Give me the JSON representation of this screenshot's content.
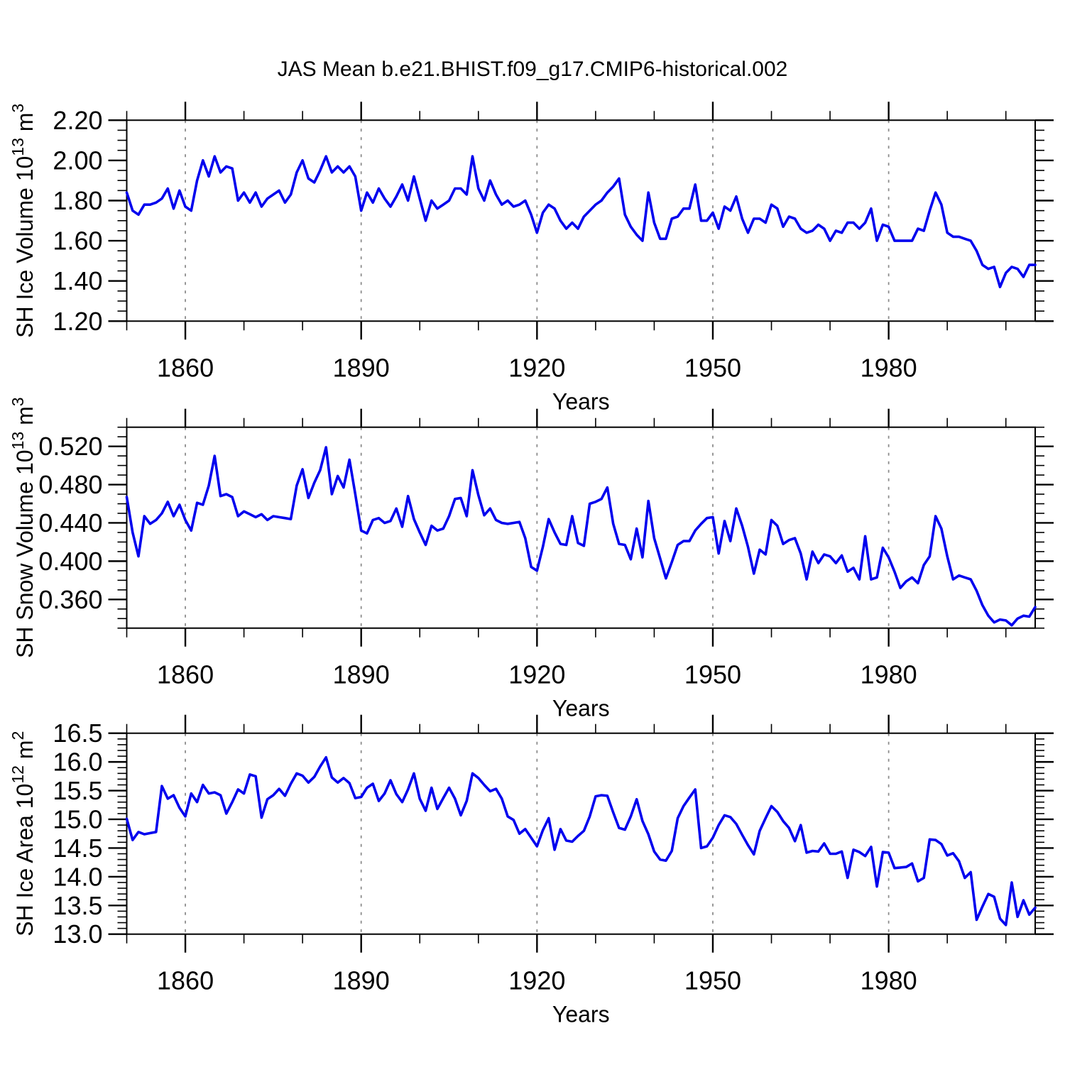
{
  "page_title": "JAS Mean b.e21.BHIST.f09_g17.CMIP6-historical.002",
  "colors": {
    "line": "#0000EE",
    "grid": "#8C8C8C",
    "axis": "#000000",
    "text": "#000000",
    "background": "#FFFFFF"
  },
  "x_axis": {
    "label": "Years",
    "start_year": 1850,
    "end_year": 2005,
    "major_ticks": [
      1860,
      1890,
      1920,
      1950,
      1980
    ],
    "minor_tick_step": 10,
    "gridlines": "dashed vertical at major ticks"
  },
  "chart_data": [
    {
      "type": "line",
      "name": "sh-ice-volume",
      "ylabel_text": "SH Ice Volume 10^13 m^3",
      "ylabel_parts": [
        {
          "t": "SH Ice Volume 10"
        },
        {
          "sup": "13"
        },
        {
          "t": " m"
        },
        {
          "sup": "3"
        }
      ],
      "ylim": [
        1.2,
        2.2
      ],
      "ytick_major": [
        1.2,
        1.4,
        1.6,
        1.8,
        2.0,
        2.2
      ],
      "ytick_minor_step": 0.05,
      "ytick_decimals": 2,
      "x_start": 1850,
      "x_step": 1,
      "values": [
        1.84,
        1.75,
        1.73,
        1.78,
        1.78,
        1.79,
        1.81,
        1.86,
        1.76,
        1.85,
        1.77,
        1.75,
        1.9,
        2.0,
        1.92,
        2.02,
        1.94,
        1.97,
        1.96,
        1.8,
        1.84,
        1.79,
        1.84,
        1.77,
        1.81,
        1.83,
        1.85,
        1.79,
        1.83,
        1.94,
        2.0,
        1.91,
        1.89,
        1.95,
        2.02,
        1.94,
        1.97,
        1.94,
        1.97,
        1.92,
        1.75,
        1.84,
        1.79,
        1.86,
        1.81,
        1.77,
        1.82,
        1.88,
        1.8,
        1.92,
        1.81,
        1.7,
        1.8,
        1.76,
        1.78,
        1.8,
        1.86,
        1.86,
        1.83,
        2.02,
        1.86,
        1.8,
        1.9,
        1.83,
        1.78,
        1.8,
        1.77,
        1.78,
        1.8,
        1.73,
        1.64,
        1.74,
        1.78,
        1.76,
        1.7,
        1.66,
        1.69,
        1.66,
        1.72,
        1.75,
        1.78,
        1.8,
        1.84,
        1.87,
        1.91,
        1.73,
        1.67,
        1.63,
        1.6,
        1.84,
        1.69,
        1.61,
        1.61,
        1.71,
        1.72,
        1.76,
        1.76,
        1.88,
        1.7,
        1.7,
        1.74,
        1.66,
        1.77,
        1.75,
        1.82,
        1.71,
        1.64,
        1.71,
        1.71,
        1.69,
        1.78,
        1.76,
        1.67,
        1.72,
        1.71,
        1.66,
        1.64,
        1.65,
        1.68,
        1.66,
        1.6,
        1.65,
        1.64,
        1.69,
        1.69,
        1.66,
        1.69,
        1.76,
        1.6,
        1.68,
        1.67,
        1.6,
        1.6,
        1.6,
        1.6,
        1.66,
        1.65,
        1.75,
        1.84,
        1.78,
        1.64,
        1.62,
        1.62,
        1.61,
        1.6,
        1.55,
        1.48,
        1.46,
        1.47,
        1.37,
        1.44,
        1.47,
        1.46,
        1.42,
        1.48,
        1.48
      ]
    },
    {
      "type": "line",
      "name": "sh-snow-volume",
      "ylabel_text": "SH Snow Volume 10^13 m^3",
      "ylabel_parts": [
        {
          "t": "SH Snow Volume 10"
        },
        {
          "sup": "13"
        },
        {
          "t": " m"
        },
        {
          "sup": "3"
        }
      ],
      "ylim": [
        0.33,
        0.54
      ],
      "ytick_major": [
        0.36,
        0.4,
        0.44,
        0.48,
        0.52
      ],
      "ytick_minor_step": 0.01,
      "ytick_decimals": 3,
      "x_start": 1850,
      "x_step": 1,
      "values": [
        0.467,
        0.43,
        0.405,
        0.447,
        0.439,
        0.443,
        0.45,
        0.462,
        0.447,
        0.459,
        0.443,
        0.432,
        0.461,
        0.459,
        0.479,
        0.51,
        0.468,
        0.47,
        0.467,
        0.447,
        0.452,
        0.449,
        0.446,
        0.449,
        0.443,
        0.447,
        0.446,
        0.445,
        0.444,
        0.479,
        0.496,
        0.466,
        0.482,
        0.495,
        0.519,
        0.47,
        0.489,
        0.477,
        0.506,
        0.47,
        0.432,
        0.429,
        0.443,
        0.445,
        0.44,
        0.442,
        0.455,
        0.436,
        0.468,
        0.444,
        0.43,
        0.417,
        0.437,
        0.432,
        0.434,
        0.447,
        0.465,
        0.466,
        0.447,
        0.495,
        0.469,
        0.448,
        0.455,
        0.443,
        0.44,
        0.439,
        0.44,
        0.441,
        0.424,
        0.394,
        0.39,
        0.415,
        0.444,
        0.43,
        0.418,
        0.417,
        0.447,
        0.419,
        0.416,
        0.46,
        0.462,
        0.465,
        0.477,
        0.439,
        0.418,
        0.417,
        0.402,
        0.434,
        0.404,
        0.463,
        0.424,
        0.403,
        0.382,
        0.399,
        0.417,
        0.421,
        0.421,
        0.432,
        0.439,
        0.445,
        0.446,
        0.408,
        0.442,
        0.421,
        0.455,
        0.437,
        0.415,
        0.387,
        0.412,
        0.407,
        0.443,
        0.437,
        0.418,
        0.422,
        0.424,
        0.408,
        0.381,
        0.41,
        0.398,
        0.407,
        0.405,
        0.398,
        0.406,
        0.389,
        0.393,
        0.381,
        0.426,
        0.381,
        0.383,
        0.414,
        0.404,
        0.389,
        0.372,
        0.379,
        0.383,
        0.377,
        0.396,
        0.405,
        0.447,
        0.434,
        0.405,
        0.381,
        0.385,
        0.383,
        0.381,
        0.369,
        0.354,
        0.343,
        0.336,
        0.339,
        0.338,
        0.333,
        0.34,
        0.343,
        0.342,
        0.352
      ]
    },
    {
      "type": "line",
      "name": "sh-ice-area",
      "ylabel_text": "SH Ice Area 10^12 m^2",
      "ylabel_parts": [
        {
          "t": "SH Ice Area 10"
        },
        {
          "sup": "12"
        },
        {
          "t": " m"
        },
        {
          "sup": "2"
        }
      ],
      "ylim": [
        13.0,
        16.5
      ],
      "ytick_major": [
        13.0,
        13.5,
        14.0,
        14.5,
        15.0,
        15.5,
        16.0,
        16.5
      ],
      "ytick_minor_step": 0.1,
      "ytick_decimals": 1,
      "x_start": 1850,
      "x_step": 1,
      "values": [
        15.01,
        14.64,
        14.78,
        14.74,
        14.76,
        14.78,
        15.58,
        15.36,
        15.42,
        15.2,
        15.05,
        15.45,
        15.3,
        15.6,
        15.45,
        15.47,
        15.42,
        15.1,
        15.3,
        15.52,
        15.45,
        15.78,
        15.75,
        15.03,
        15.35,
        15.42,
        15.53,
        15.41,
        15.62,
        15.8,
        15.76,
        15.64,
        15.74,
        15.92,
        16.08,
        15.73,
        15.64,
        15.72,
        15.63,
        15.37,
        15.39,
        15.55,
        15.62,
        15.32,
        15.45,
        15.68,
        15.44,
        15.3,
        15.52,
        15.8,
        15.36,
        15.15,
        15.55,
        15.18,
        15.37,
        15.55,
        15.36,
        15.07,
        15.32,
        15.8,
        15.72,
        15.6,
        15.49,
        15.53,
        15.36,
        15.05,
        14.99,
        14.75,
        14.83,
        14.68,
        14.53,
        14.81,
        15.02,
        14.47,
        14.83,
        14.63,
        14.61,
        14.71,
        14.8,
        15.05,
        15.4,
        15.42,
        15.41,
        15.12,
        14.85,
        14.82,
        15.05,
        15.35,
        14.97,
        14.74,
        14.44,
        14.3,
        14.28,
        14.45,
        15.02,
        15.23,
        15.38,
        15.52,
        14.5,
        14.53,
        14.68,
        14.9,
        15.07,
        15.04,
        14.92,
        14.73,
        14.55,
        14.39,
        14.8,
        15.02,
        15.23,
        15.13,
        14.97,
        14.85,
        14.62,
        14.9,
        14.42,
        14.45,
        14.44,
        14.58,
        14.4,
        14.4,
        14.44,
        13.98,
        14.47,
        14.43,
        14.36,
        14.52,
        13.83,
        14.43,
        14.42,
        14.15,
        14.16,
        14.17,
        14.23,
        13.92,
        13.98,
        14.65,
        14.64,
        14.57,
        14.37,
        14.41,
        14.27,
        13.98,
        14.08,
        13.25,
        13.48,
        13.7,
        13.65,
        13.27,
        13.16,
        13.9,
        13.3,
        13.59,
        13.34,
        13.46
      ]
    }
  ]
}
